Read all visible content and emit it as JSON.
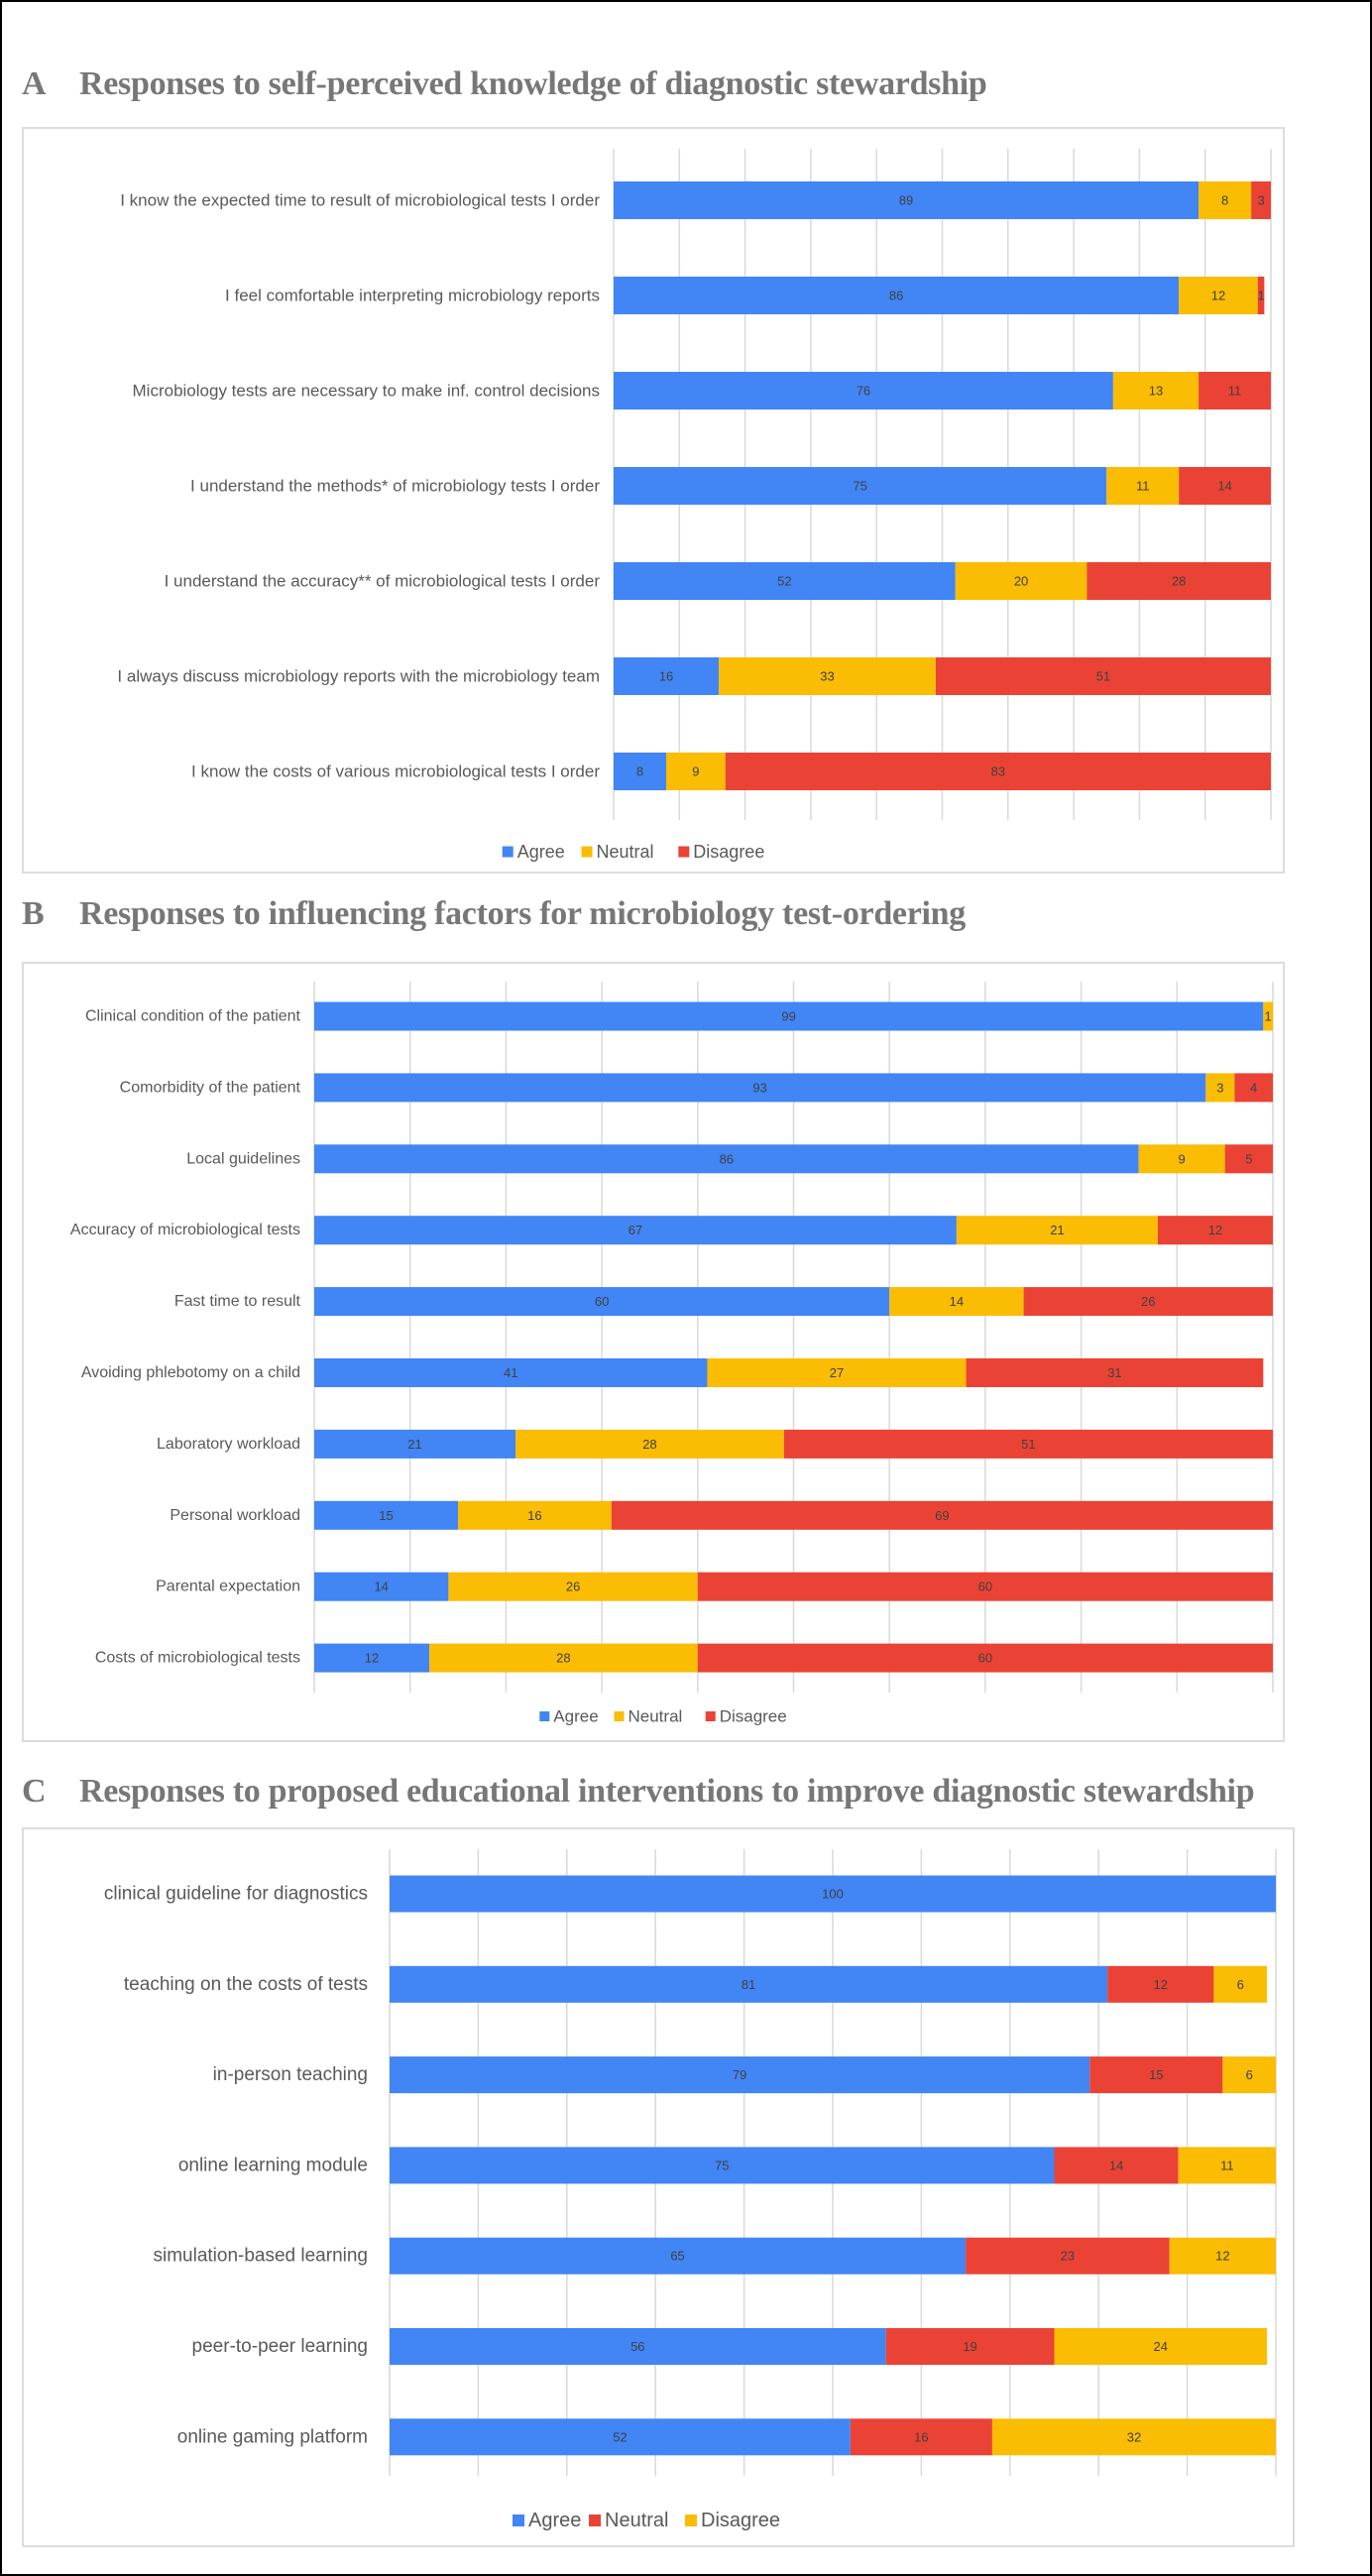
{
  "page": {
    "panels": [
      {
        "letter": "A",
        "title": "Responses to self-perceived knowledge of diagnostic stewardship"
      },
      {
        "letter": "B",
        "title": "Responses to influencing factors for microbiology test-ordering"
      },
      {
        "letter": "C",
        "title": "Responses to proposed educational interventions to improve diagnostic stewardship"
      }
    ]
  },
  "chart_data": [
    {
      "type": "bar",
      "orientation": "horizontal",
      "stacked": true,
      "title": "A Responses to self-perceived knowledge of diagnostic stewardship",
      "xlabel": "",
      "ylabel": "",
      "xlim": [
        0,
        100
      ],
      "grid": true,
      "legend": "bottom",
      "categories": [
        "I know the expected time to result of microbiological tests I order",
        "I feel comfortable interpreting microbiology reports",
        "Microbiology tests are necessary to make inf. control decisions",
        "I understand the methods* of microbiology tests I order",
        "I understand the accuracy** of microbiological tests I order",
        "I always discuss microbiology reports with the microbiology team",
        "I know the costs of various microbiological tests I order"
      ],
      "series": [
        {
          "name": "Agree",
          "color": "#4285F4",
          "values": [
            89,
            86,
            76,
            75,
            52,
            16,
            8
          ]
        },
        {
          "name": "Neutral",
          "color": "#FBBC04",
          "values": [
            8,
            12,
            13,
            11,
            20,
            33,
            9
          ]
        },
        {
          "name": "Disagree",
          "color": "#EA4335",
          "values": [
            3,
            1,
            11,
            14,
            28,
            51,
            83
          ]
        }
      ]
    },
    {
      "type": "bar",
      "orientation": "horizontal",
      "stacked": true,
      "title": "B Responses to influencing factors for microbiology test-ordering",
      "xlabel": "",
      "ylabel": "",
      "xlim": [
        0,
        100
      ],
      "grid": true,
      "legend": "bottom",
      "categories": [
        "Clinical condition of the patient",
        "Comorbidity of the patient",
        "Local guidelines",
        "Accuracy of microbiological tests",
        "Fast time to result",
        "Avoiding phlebotomy on a child",
        "Laboratory workload",
        "Personal workload",
        "Parental expectation",
        "Costs of microbiological tests"
      ],
      "series": [
        {
          "name": "Agree",
          "color": "#4285F4",
          "values": [
            99,
            93,
            86,
            67,
            60,
            41,
            21,
            15,
            14,
            12
          ]
        },
        {
          "name": "Neutral",
          "color": "#FBBC04",
          "values": [
            1,
            3,
            9,
            21,
            14,
            27,
            28,
            16,
            26,
            28
          ]
        },
        {
          "name": "Disagree",
          "color": "#EA4335",
          "values": [
            0,
            4,
            5,
            12,
            26,
            31,
            51,
            69,
            60,
            60
          ]
        }
      ]
    },
    {
      "type": "bar",
      "orientation": "horizontal",
      "stacked": true,
      "title": "C Responses to proposed educational interventions to improve diagnostic stewardship",
      "xlabel": "",
      "ylabel": "",
      "xlim": [
        0,
        100
      ],
      "grid": true,
      "legend": "bottom",
      "categories": [
        "clinical guideline for diagnostics",
        "teaching on the costs of tests",
        "in-person teaching",
        "online learning module",
        "simulation-based learning",
        "peer-to-peer learning",
        "online gaming platform"
      ],
      "series": [
        {
          "name": "Agree",
          "color": "#4285F4",
          "values": [
            100,
            81,
            79,
            75,
            65,
            56,
            52
          ]
        },
        {
          "name": "Neutral",
          "color": "#EA4335",
          "values": [
            0,
            12,
            15,
            14,
            23,
            19,
            16
          ]
        },
        {
          "name": "Disagree",
          "color": "#FBBC04",
          "values": [
            0,
            6,
            6,
            11,
            12,
            24,
            32
          ]
        }
      ]
    }
  ]
}
